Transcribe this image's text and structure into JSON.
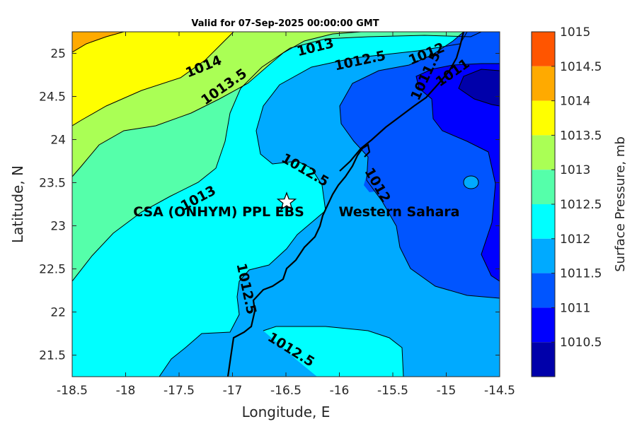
{
  "title": "Valid for 07-Sep-2025 00:00:00 GMT",
  "chart_data": {
    "type": "contour-map",
    "xlabel": "Longitude, E",
    "ylabel": "Latitude, N",
    "xlim": [
      -18.5,
      -14.5
    ],
    "ylim": [
      21.25,
      25.25
    ],
    "xticks": [
      "-18.5",
      "-18",
      "-17.5",
      "-17",
      "-16.5",
      "-16",
      "-15.5",
      "-15",
      "-14.5"
    ],
    "yticks": [
      "21.5",
      "22",
      "22.5",
      "23",
      "23.5",
      "24",
      "24.5",
      "25"
    ],
    "colorbar": {
      "label": "Surface Pressure, mb",
      "ticks": [
        "1015",
        "1014.5",
        "1014",
        "1013.5",
        "1013",
        "1012.5",
        "1012",
        "1011.5",
        "1011",
        "1010.5"
      ],
      "levels": [
        {
          "from": 1014.5,
          "to": 1015,
          "color": "#ff5500"
        },
        {
          "from": 1014,
          "to": 1014.5,
          "color": "#ffaa00"
        },
        {
          "from": 1013.5,
          "to": 1014,
          "color": "#ffff00"
        },
        {
          "from": 1013,
          "to": 1013.5,
          "color": "#aaff55"
        },
        {
          "from": 1012.5,
          "to": 1013,
          "color": "#55ffaa"
        },
        {
          "from": 1012,
          "to": 1012.5,
          "color": "#00ffff"
        },
        {
          "from": 1011.5,
          "to": 1012,
          "color": "#00aaff"
        },
        {
          "from": 1011,
          "to": 1011.5,
          "color": "#0055ff"
        },
        {
          "from": 1010.5,
          "to": 1011,
          "color": "#0000ff"
        },
        {
          "from": 1010,
          "to": 1010.5,
          "color": "#0000aa"
        }
      ]
    },
    "contour_labels": [
      "1014",
      "1013.5",
      "1013",
      "1012.5",
      "1012",
      "1011.5",
      "1011",
      "1013",
      "1012.5",
      "1012",
      "1012.5",
      "1012.5"
    ],
    "station": {
      "name": "CSA (ONHYM) PPL EBS",
      "lon": -16.5,
      "lat": 23.3
    },
    "region_label": "Western Sahara"
  }
}
